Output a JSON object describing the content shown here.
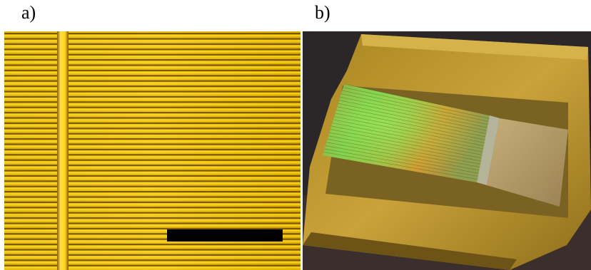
{
  "figure": {
    "panel_a": {
      "label": "a)",
      "description_icon": "micrograph-fiber-array",
      "colors": {
        "background": "#e2b400",
        "stripe_dark": "#4a2c00",
        "stripe_light": "#ffd100"
      }
    },
    "panel_b": {
      "label": "b)",
      "description_icon": "photo-sample-mount",
      "colors": {
        "background": "#2a2628",
        "mount": "#b8902a",
        "sample_glow_green": "#7cd84a",
        "sample_glow_orange": "#e08a2a"
      }
    }
  }
}
